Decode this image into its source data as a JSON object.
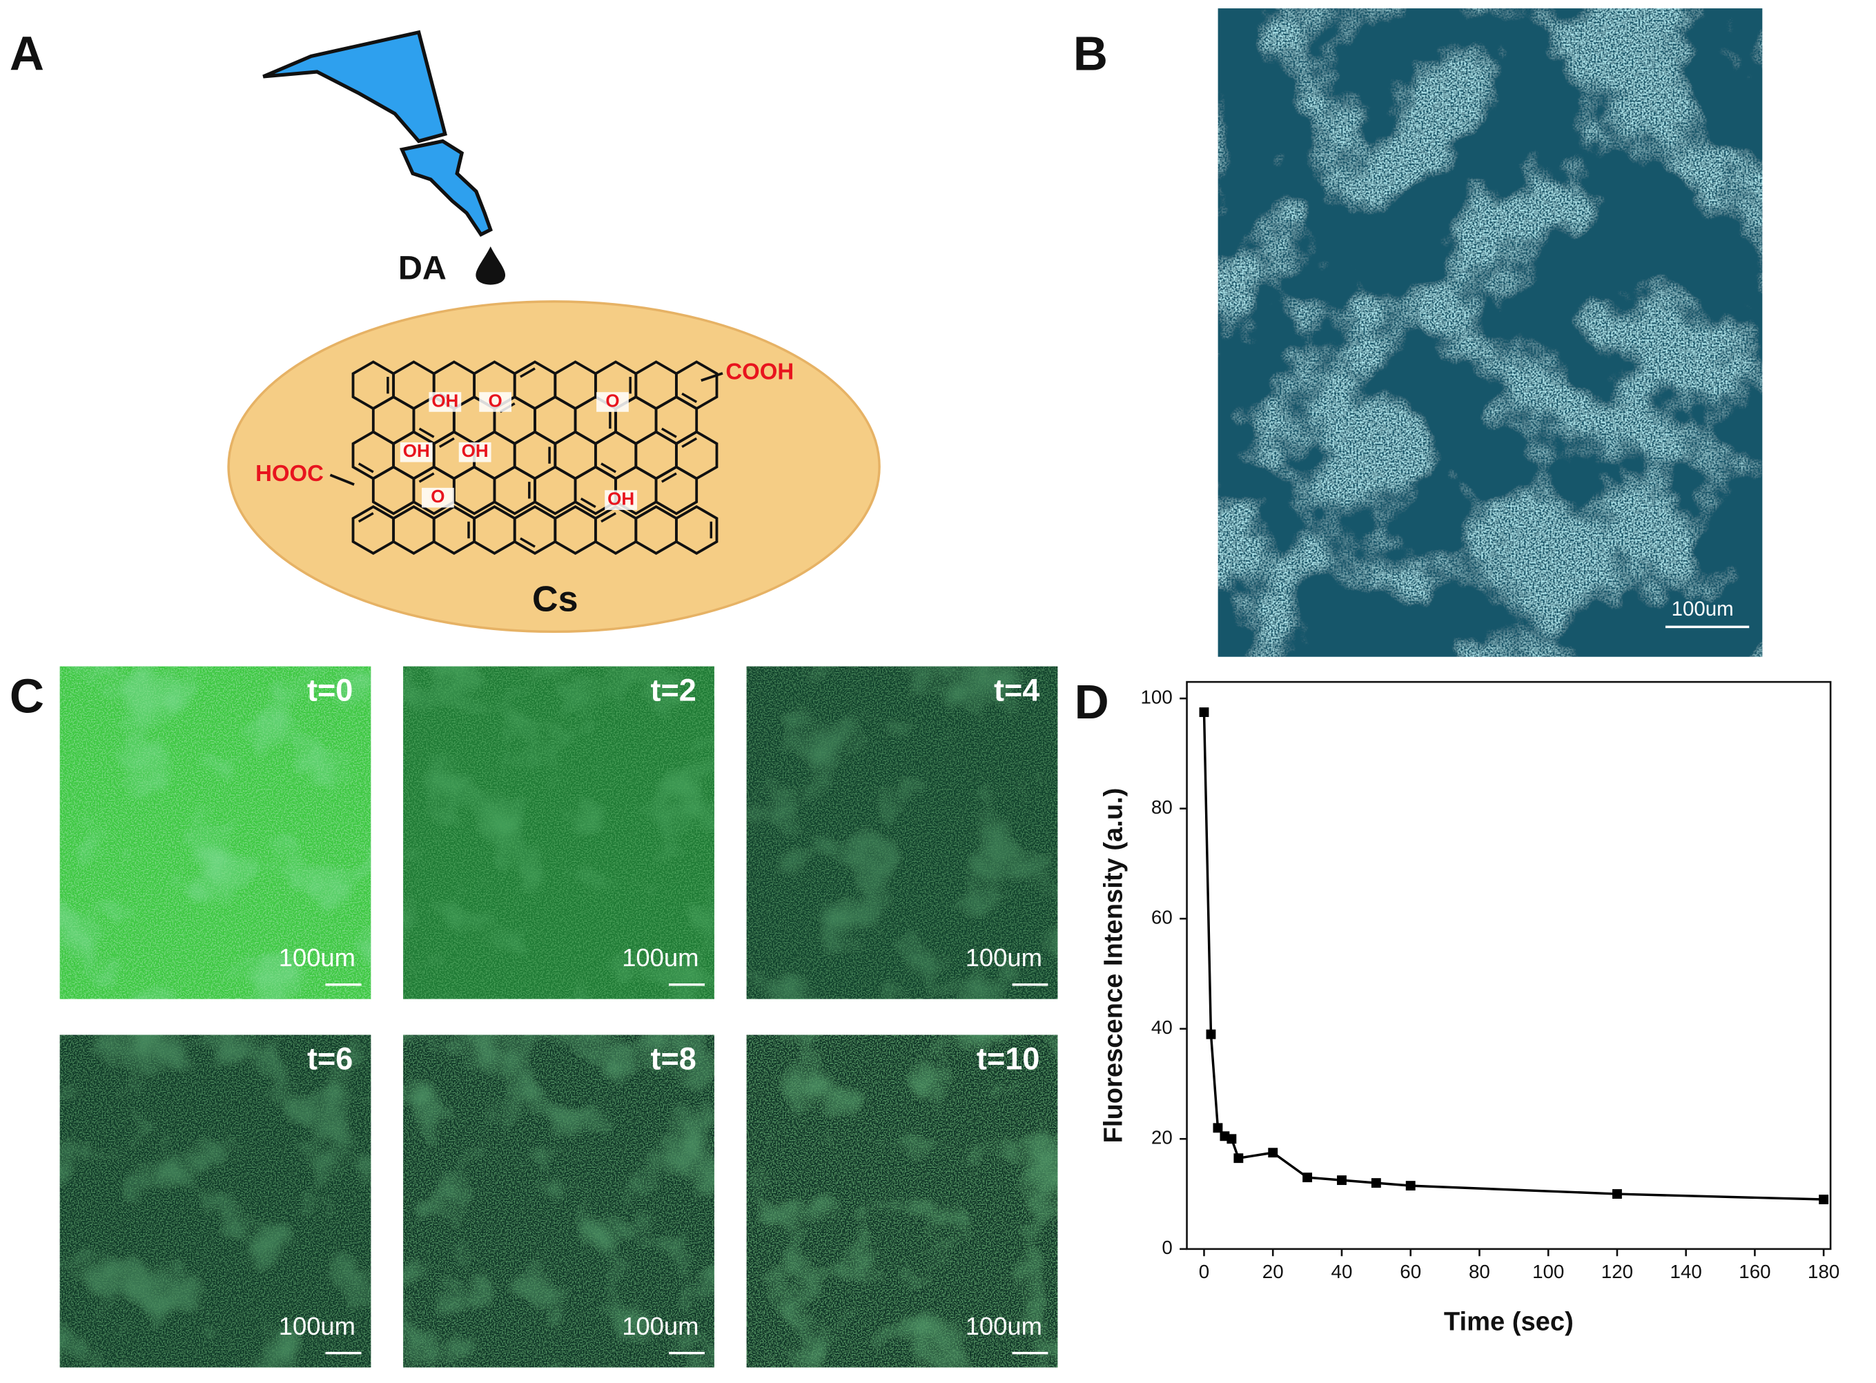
{
  "panel_a": {
    "letter": "A",
    "reagent": "DA",
    "substrate": "Cs",
    "groups": [
      "COOH",
      "HOOC",
      "OH",
      "OH",
      "OH",
      "OH",
      "O",
      "O",
      "O"
    ]
  },
  "panel_b": {
    "letter": "B",
    "scale_bar": "100um"
  },
  "panel_c": {
    "letter": "C",
    "frames": [
      {
        "time": "t=0",
        "scale_bar": "100um"
      },
      {
        "time": "t=2",
        "scale_bar": "100um"
      },
      {
        "time": "t=4",
        "scale_bar": "100um"
      },
      {
        "time": "t=6",
        "scale_bar": "100um"
      },
      {
        "time": "t=8",
        "scale_bar": "100um"
      },
      {
        "time": "t=10",
        "scale_bar": "100um"
      }
    ]
  },
  "panel_d": {
    "letter": "D"
  },
  "chart_data": {
    "type": "line",
    "x_label": "Time (sec)",
    "y_label": "Fluorescence Intensity (a.u.)",
    "x": [
      0,
      2,
      4,
      6,
      8,
      10,
      20,
      30,
      40,
      50,
      60,
      120,
      180
    ],
    "series": [
      {
        "color": "#000000",
        "values": [
          97.5,
          39,
          22,
          20.5,
          20,
          16.5,
          17.5,
          13,
          12.5,
          12,
          11.5,
          10,
          9
        ]
      }
    ],
    "xlim": [
      -5,
      182
    ],
    "ylim": [
      0,
      103
    ],
    "xticks": [
      0,
      20,
      40,
      60,
      80,
      100,
      120,
      140,
      160,
      180
    ],
    "yticks": [
      0,
      20,
      40,
      60,
      80,
      100
    ]
  }
}
